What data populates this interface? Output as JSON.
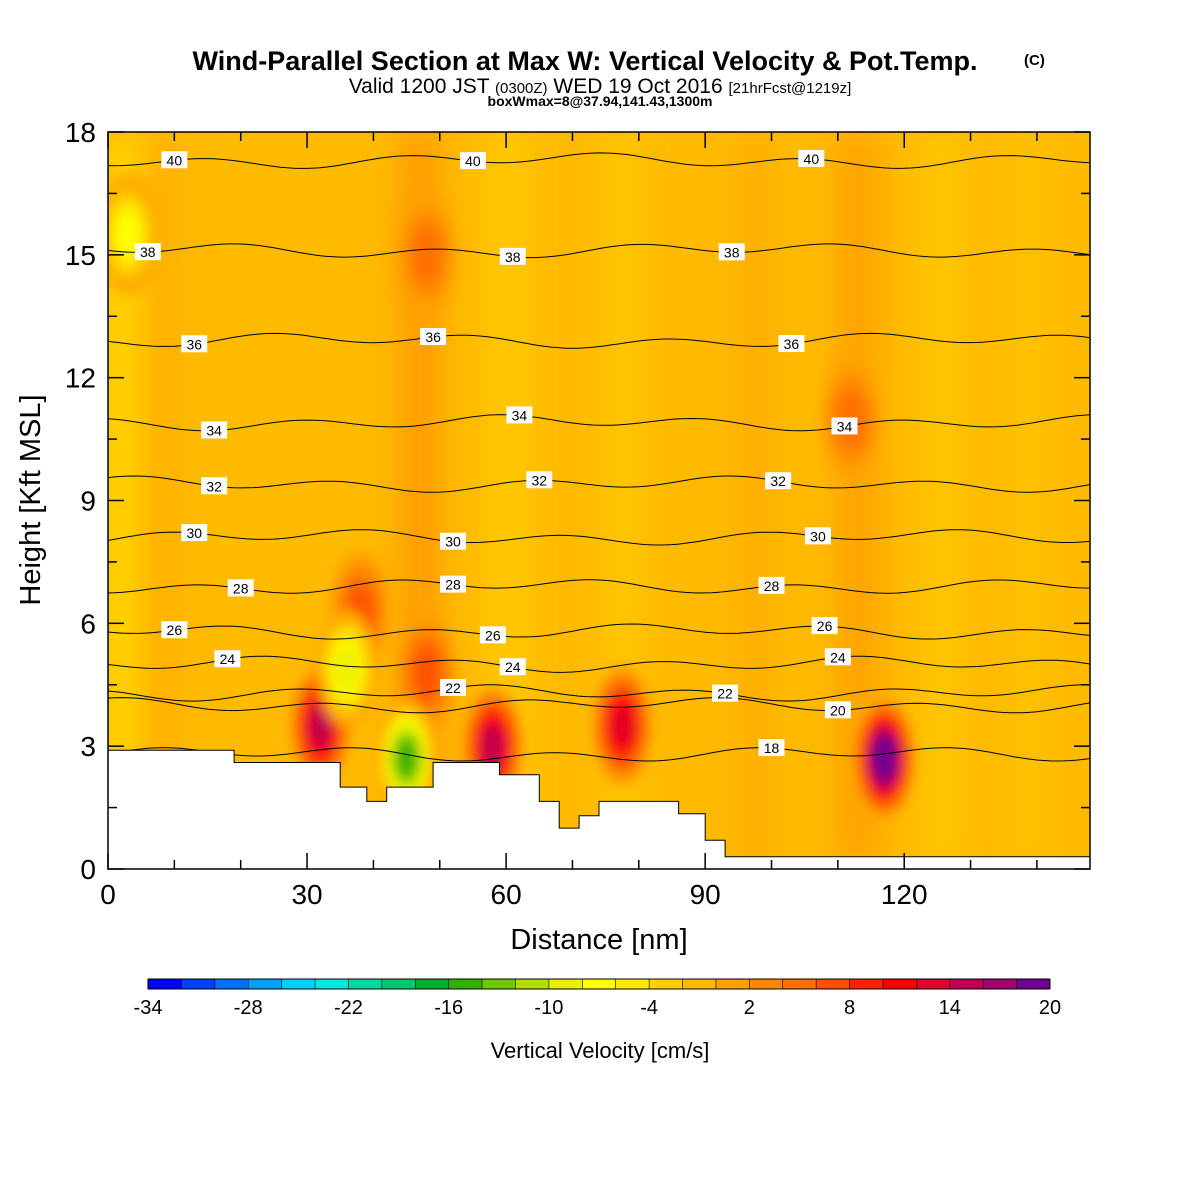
{
  "header": {
    "title": "Wind-Parallel Section at Max W: Vertical Velocity & Pot.Temp.",
    "title_mark": "(C)",
    "valid_prefix": "Valid 1200 JST",
    "valid_utc": "(0300Z)",
    "valid_date": "WED 19 Oct 2016",
    "forecast": "[21hrFcst@1219z]",
    "box_info": "boxWmax=8@37.94,141.43,1300m"
  },
  "chart_data": {
    "type": "heatmap",
    "xlabel": "Distance [nm]",
    "ylabel": "Height [Kft MSL]",
    "xlim": [
      0,
      148
    ],
    "ylim": [
      0,
      18
    ],
    "xticks": [
      0,
      30,
      60,
      90,
      120
    ],
    "yticks": [
      0,
      3,
      6,
      9,
      12,
      15,
      18
    ],
    "terrain": [
      [
        0,
        2.9
      ],
      [
        19,
        2.9
      ],
      [
        19,
        2.6
      ],
      [
        35,
        2.6
      ],
      [
        35,
        2.0
      ],
      [
        39,
        2.0
      ],
      [
        39,
        1.65
      ],
      [
        42,
        1.65
      ],
      [
        42,
        2.0
      ],
      [
        49,
        2.0
      ],
      [
        49,
        2.6
      ],
      [
        59,
        2.6
      ],
      [
        59,
        2.3
      ],
      [
        65,
        2.3
      ],
      [
        65,
        1.65
      ],
      [
        68,
        1.65
      ],
      [
        68,
        1.0
      ],
      [
        71,
        1.0
      ],
      [
        71,
        1.3
      ],
      [
        74,
        1.3
      ],
      [
        74,
        1.65
      ],
      [
        86,
        1.65
      ],
      [
        86,
        1.35
      ],
      [
        90,
        1.35
      ],
      [
        90,
        0.7
      ],
      [
        93,
        0.7
      ],
      [
        93,
        0.3
      ],
      [
        148,
        0.3
      ]
    ],
    "updrafts": [
      {
        "x": 32,
        "z": 3.5,
        "w": 14
      },
      {
        "x": 58,
        "z": 3.0,
        "w": 14
      },
      {
        "x": 77.5,
        "z": 3.5,
        "w": 12
      },
      {
        "x": 117,
        "z": 2.7,
        "w": 20
      },
      {
        "x": 38,
        "z": 6.3,
        "w": 6
      },
      {
        "x": 48,
        "z": 4.8,
        "w": 6
      },
      {
        "x": 48,
        "z": 15.0,
        "w": 5
      },
      {
        "x": 112,
        "z": 11.0,
        "w": 5
      }
    ],
    "downdrafts": [
      {
        "x": 45,
        "z": 2.7,
        "w": -16
      },
      {
        "x": 36,
        "z": 4.9,
        "w": -10
      },
      {
        "x": 3,
        "z": 15.5,
        "w": -8
      }
    ],
    "theta_levels": [
      {
        "label": "18",
        "z": 2.8,
        "labels_at": [
          100
        ]
      },
      {
        "label": "20",
        "z": 4.0,
        "labels_at": [
          110
        ]
      },
      {
        "label": "22",
        "z": 4.3,
        "labels_at": [
          52,
          93
        ]
      },
      {
        "label": "24",
        "z": 5.0,
        "labels_at": [
          18,
          61,
          110
        ]
      },
      {
        "label": "26",
        "z": 5.8,
        "labels_at": [
          10,
          58,
          108
        ]
      },
      {
        "label": "28",
        "z": 6.9,
        "labels_at": [
          20,
          52,
          100
        ]
      },
      {
        "label": "30",
        "z": 8.1,
        "labels_at": [
          13,
          52,
          107
        ]
      },
      {
        "label": "32",
        "z": 9.4,
        "labels_at": [
          16,
          65,
          101
        ]
      },
      {
        "label": "34",
        "z": 10.9,
        "labels_at": [
          16,
          62,
          111
        ]
      },
      {
        "label": "36",
        "z": 12.9,
        "labels_at": [
          13,
          49,
          103
        ]
      },
      {
        "label": "38",
        "z": 15.1,
        "labels_at": [
          6,
          61,
          94
        ]
      },
      {
        "label": "40",
        "z": 17.3,
        "labels_at": [
          10,
          55,
          106
        ]
      }
    ],
    "colorbar": {
      "label": "Vertical Velocity [cm/s]",
      "min": -34,
      "max": 20,
      "step": 2,
      "ticks": [
        -34,
        -28,
        -22,
        -16,
        -10,
        -4,
        2,
        8,
        14,
        20
      ],
      "colors": [
        "#0000ff",
        "#0040ff",
        "#0070ff",
        "#00a0ff",
        "#00d0ff",
        "#00e8e0",
        "#00d8a0",
        "#00c870",
        "#00b030",
        "#30b000",
        "#70c800",
        "#b0e000",
        "#e8f000",
        "#ffff00",
        "#ffe800",
        "#ffd000",
        "#ffb800",
        "#ffa000",
        "#ff8800",
        "#ff7000",
        "#ff5000",
        "#ff2000",
        "#ff0000",
        "#e0002a",
        "#c00050",
        "#a00070",
        "#700090"
      ]
    }
  }
}
